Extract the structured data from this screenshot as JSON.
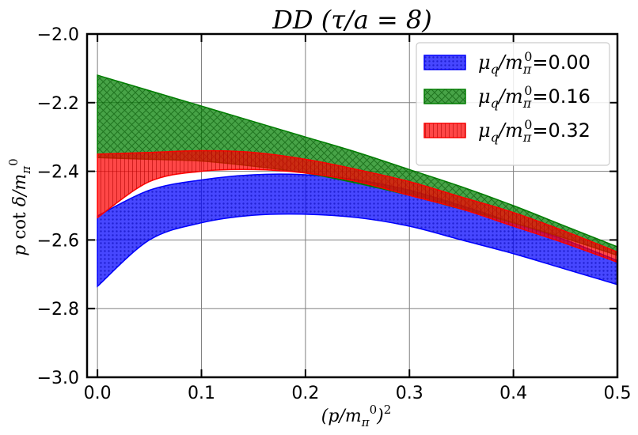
{
  "chart_data": {
    "type": "area",
    "title": "DD (τ/a = 8)",
    "xlabel": "(p/m_π^0)^2",
    "ylabel": "p cot δ/m_π^0",
    "xlim": [
      -0.01,
      0.5
    ],
    "ylim": [
      -3.0,
      -2.0
    ],
    "xticks": [
      0.0,
      0.1,
      0.2,
      0.3,
      0.4,
      0.5
    ],
    "xtick_labels": [
      "0.0",
      "0.1",
      "0.2",
      "0.3",
      "0.4",
      "0.5"
    ],
    "yticks": [
      -3.0,
      -2.8,
      -2.6,
      -2.4,
      -2.2,
      -2.0
    ],
    "ytick_labels": [
      "−3.0",
      "−2.8",
      "−2.6",
      "−2.4",
      "−2.2",
      "−2.0"
    ],
    "grid": true,
    "legend_position": "top-right",
    "x": [
      0.0,
      0.05,
      0.1,
      0.15,
      0.2,
      0.25,
      0.3,
      0.35,
      0.4,
      0.45,
      0.5
    ],
    "series": [
      {
        "name": "μ_q/m_π^0=0.00",
        "legend_symbol": "μ_q/m_π^0",
        "legend_value": "=0.00",
        "color": "#0000ff",
        "hatch": "dots",
        "lower": [
          -2.735,
          -2.6,
          -2.55,
          -2.528,
          -2.525,
          -2.535,
          -2.56,
          -2.6,
          -2.64,
          -2.685,
          -2.73
        ],
        "upper": [
          -2.53,
          -2.455,
          -2.425,
          -2.41,
          -2.41,
          -2.425,
          -2.455,
          -2.5,
          -2.55,
          -2.6,
          -2.66
        ]
      },
      {
        "name": "μ_q/m_π^0=0.16",
        "legend_symbol": "μ_q/m_π^0",
        "legend_value": "=0.16",
        "color": "#008000",
        "hatch": "crosshatch",
        "lower": [
          -2.36,
          -2.365,
          -2.37,
          -2.385,
          -2.405,
          -2.435,
          -2.47,
          -2.51,
          -2.55,
          -2.595,
          -2.645
        ],
        "upper": [
          -2.12,
          -2.165,
          -2.21,
          -2.255,
          -2.3,
          -2.345,
          -2.395,
          -2.445,
          -2.5,
          -2.56,
          -2.62
        ]
      },
      {
        "name": "μ_q/m_π^0=0.32",
        "legend_symbol": "μ_q/m_π^0",
        "legend_value": "=0.32",
        "color": "#ff0000",
        "hatch": "vertical",
        "lower": [
          -2.535,
          -2.43,
          -2.4,
          -2.395,
          -2.405,
          -2.43,
          -2.47,
          -2.51,
          -2.56,
          -2.61,
          -2.665
        ],
        "upper": [
          -2.35,
          -2.345,
          -2.34,
          -2.345,
          -2.365,
          -2.395,
          -2.43,
          -2.475,
          -2.52,
          -2.575,
          -2.635
        ]
      }
    ]
  }
}
